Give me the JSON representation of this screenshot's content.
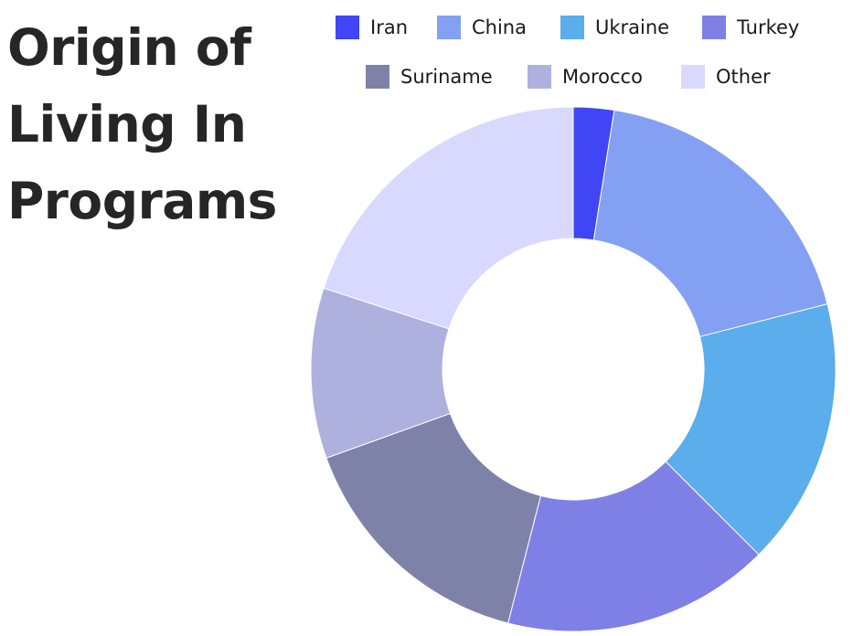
{
  "chart_data": {
    "type": "pie",
    "title": "Origin of Living In Programs",
    "donut": true,
    "legend_position": "top",
    "categories": [
      "Iran",
      "China",
      "Ukraine",
      "Turkey",
      "Suriname",
      "Morocco",
      "Other"
    ],
    "values": [
      2.5,
      18.5,
      16.5,
      16.5,
      15.5,
      10.5,
      20
    ],
    "colors": [
      "#4046F5",
      "#84A0F2",
      "#5BADEB",
      "#7F80E6",
      "#7F82A8",
      "#AEB0DD",
      "#D9D9FF"
    ]
  }
}
